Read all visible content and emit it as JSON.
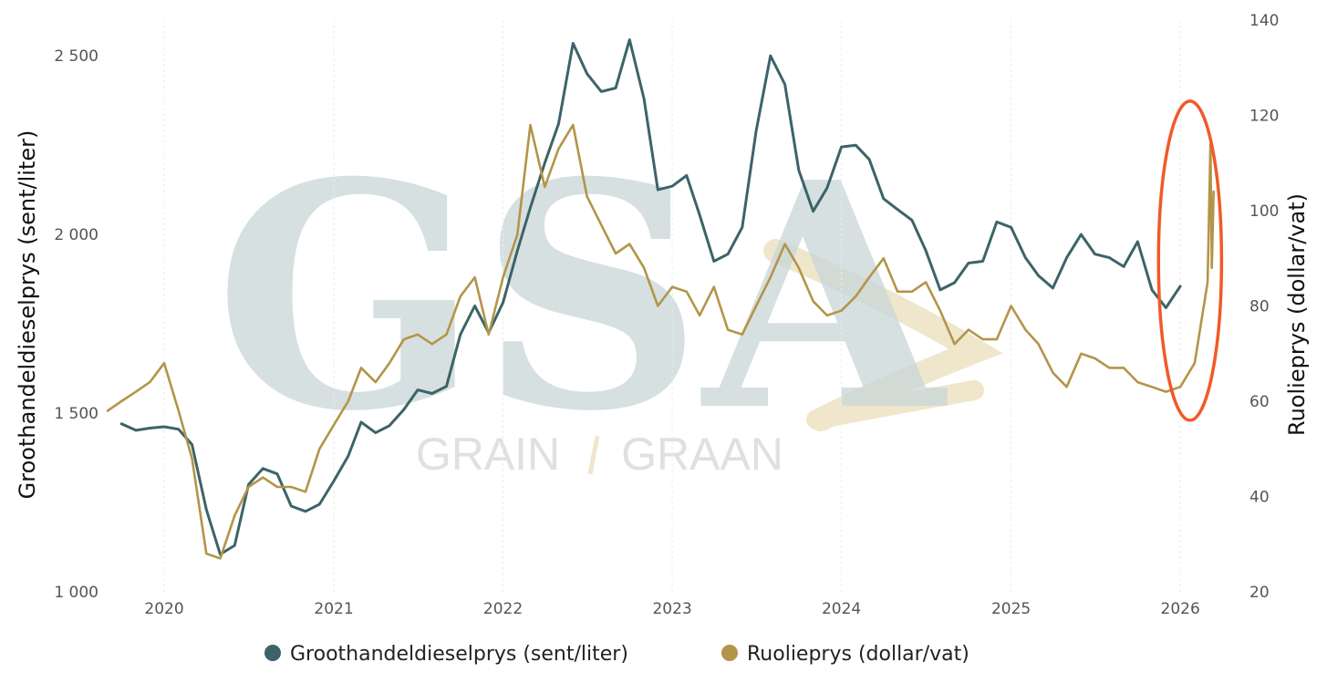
{
  "watermark": {
    "logo_text": "GSA",
    "text_left": "GRAIN",
    "text_right": "GRAAN",
    "colors": {
      "logo": "#c9d6d8",
      "accent": "#efe6cc"
    }
  },
  "chart_data": {
    "type": "line",
    "title": "",
    "x_ticks": [
      "2020",
      "2021",
      "2022",
      "2023",
      "2024",
      "2025",
      "2026"
    ],
    "xlim": [
      "2019-09-01",
      "2026-04-15"
    ],
    "grid": {
      "x": true,
      "y": false
    },
    "legend_position": "bottom",
    "y_left": {
      "label": "Groothandeldieselprys (sent/liter)",
      "range": [
        1000,
        2600
      ],
      "ticks": [
        1000,
        1500,
        2000,
        2500
      ],
      "tick_labels": [
        "1 000",
        "1 500",
        "2 000",
        "2 500"
      ]
    },
    "y_right": {
      "label": "Ruolieprys (dollar/vat)",
      "range": [
        20,
        140
      ],
      "ticks": [
        20,
        40,
        60,
        80,
        100,
        120,
        140
      ],
      "tick_labels": [
        "20",
        "40",
        "60",
        "80",
        "100",
        "120",
        "140"
      ]
    },
    "series": [
      {
        "name": "Groothandeldieselprys (sent/liter)",
        "axis": "left",
        "color": "#3c6468",
        "points": [
          [
            "2019-10-01",
            1470
          ],
          [
            "2019-11-01",
            1452
          ],
          [
            "2019-12-01",
            1458
          ],
          [
            "2020-01-01",
            1462
          ],
          [
            "2020-02-01",
            1455
          ],
          [
            "2020-03-01",
            1412
          ],
          [
            "2020-04-01",
            1230
          ],
          [
            "2020-05-01",
            1105
          ],
          [
            "2020-06-01",
            1130
          ],
          [
            "2020-07-01",
            1300
          ],
          [
            "2020-08-01",
            1345
          ],
          [
            "2020-09-01",
            1330
          ],
          [
            "2020-10-01",
            1240
          ],
          [
            "2020-11-01",
            1225
          ],
          [
            "2020-12-01",
            1245
          ],
          [
            "2021-01-01",
            1310
          ],
          [
            "2021-02-01",
            1380
          ],
          [
            "2021-03-01",
            1475
          ],
          [
            "2021-04-01",
            1445
          ],
          [
            "2021-05-01",
            1465
          ],
          [
            "2021-06-01",
            1510
          ],
          [
            "2021-07-01",
            1565
          ],
          [
            "2021-08-01",
            1555
          ],
          [
            "2021-09-01",
            1575
          ],
          [
            "2021-10-01",
            1720
          ],
          [
            "2021-11-01",
            1800
          ],
          [
            "2021-12-01",
            1725
          ],
          [
            "2022-01-01",
            1810
          ],
          [
            "2022-02-01",
            1955
          ],
          [
            "2022-03-01",
            2075
          ],
          [
            "2022-04-01",
            2200
          ],
          [
            "2022-05-01",
            2310
          ],
          [
            "2022-06-01",
            2535
          ],
          [
            "2022-07-01",
            2450
          ],
          [
            "2022-08-01",
            2400
          ],
          [
            "2022-09-01",
            2410
          ],
          [
            "2022-10-01",
            2545
          ],
          [
            "2022-11-01",
            2380
          ],
          [
            "2022-12-01",
            2125
          ],
          [
            "2023-01-01",
            2135
          ],
          [
            "2023-02-01",
            2165
          ],
          [
            "2023-03-01",
            2055
          ],
          [
            "2023-04-01",
            1925
          ],
          [
            "2023-05-01",
            1945
          ],
          [
            "2023-06-01",
            2020
          ],
          [
            "2023-07-01",
            2290
          ],
          [
            "2023-08-01",
            2500
          ],
          [
            "2023-09-01",
            2420
          ],
          [
            "2023-10-01",
            2180
          ],
          [
            "2023-11-01",
            2065
          ],
          [
            "2023-12-01",
            2130
          ],
          [
            "2024-01-01",
            2245
          ],
          [
            "2024-02-01",
            2250
          ],
          [
            "2024-03-01",
            2210
          ],
          [
            "2024-04-01",
            2100
          ],
          [
            "2024-05-01",
            2070
          ],
          [
            "2024-06-01",
            2040
          ],
          [
            "2024-07-01",
            1955
          ],
          [
            "2024-08-01",
            1845
          ],
          [
            "2024-09-01",
            1865
          ],
          [
            "2024-10-01",
            1920
          ],
          [
            "2024-11-01",
            1925
          ],
          [
            "2024-12-01",
            2035
          ],
          [
            "2025-01-01",
            2020
          ],
          [
            "2025-02-01",
            1935
          ],
          [
            "2025-03-01",
            1885
          ],
          [
            "2025-04-01",
            1850
          ],
          [
            "2025-05-01",
            1935
          ],
          [
            "2025-06-01",
            2000
          ],
          [
            "2025-07-01",
            1945
          ],
          [
            "2025-08-01",
            1935
          ],
          [
            "2025-09-01",
            1910
          ],
          [
            "2025-10-01",
            1980
          ],
          [
            "2025-11-01",
            1845
          ],
          [
            "2025-12-01",
            1795
          ],
          [
            "2026-01-01",
            1855
          ]
        ]
      },
      {
        "name": "Ruolieprys (dollar/vat)",
        "axis": "right",
        "color": "#b39549",
        "points": [
          [
            "2019-09-01",
            58
          ],
          [
            "2019-10-01",
            60
          ],
          [
            "2019-11-01",
            62
          ],
          [
            "2019-12-01",
            64
          ],
          [
            "2020-01-01",
            68
          ],
          [
            "2020-02-01",
            58
          ],
          [
            "2020-03-01",
            48
          ],
          [
            "2020-04-01",
            28
          ],
          [
            "2020-05-01",
            27
          ],
          [
            "2020-06-01",
            36
          ],
          [
            "2020-07-01",
            42
          ],
          [
            "2020-08-01",
            44
          ],
          [
            "2020-09-01",
            42
          ],
          [
            "2020-10-01",
            42
          ],
          [
            "2020-11-01",
            41
          ],
          [
            "2020-12-01",
            50
          ],
          [
            "2021-01-01",
            55
          ],
          [
            "2021-02-01",
            60
          ],
          [
            "2021-03-01",
            67
          ],
          [
            "2021-04-01",
            64
          ],
          [
            "2021-05-01",
            68
          ],
          [
            "2021-06-01",
            73
          ],
          [
            "2021-07-01",
            74
          ],
          [
            "2021-08-01",
            72
          ],
          [
            "2021-09-01",
            74
          ],
          [
            "2021-10-01",
            82
          ],
          [
            "2021-11-01",
            86
          ],
          [
            "2021-12-01",
            74
          ],
          [
            "2022-01-01",
            86
          ],
          [
            "2022-02-01",
            95
          ],
          [
            "2022-03-01",
            118
          ],
          [
            "2022-04-01",
            105
          ],
          [
            "2022-05-01",
            113
          ],
          [
            "2022-06-01",
            118
          ],
          [
            "2022-07-01",
            103
          ],
          [
            "2022-08-01",
            97
          ],
          [
            "2022-09-01",
            91
          ],
          [
            "2022-10-01",
            93
          ],
          [
            "2022-11-01",
            88
          ],
          [
            "2022-12-01",
            80
          ],
          [
            "2023-01-01",
            84
          ],
          [
            "2023-02-01",
            83
          ],
          [
            "2023-03-01",
            78
          ],
          [
            "2023-04-01",
            84
          ],
          [
            "2023-05-01",
            75
          ],
          [
            "2023-06-01",
            74
          ],
          [
            "2023-07-01",
            80
          ],
          [
            "2023-08-01",
            86
          ],
          [
            "2023-09-01",
            93
          ],
          [
            "2023-10-01",
            88
          ],
          [
            "2023-11-01",
            81
          ],
          [
            "2023-12-01",
            78
          ],
          [
            "2024-01-01",
            79
          ],
          [
            "2024-02-01",
            82
          ],
          [
            "2024-03-01",
            86
          ],
          [
            "2024-04-01",
            90
          ],
          [
            "2024-05-01",
            83
          ],
          [
            "2024-06-01",
            83
          ],
          [
            "2024-07-01",
            85
          ],
          [
            "2024-08-01",
            79
          ],
          [
            "2024-09-01",
            72
          ],
          [
            "2024-10-01",
            75
          ],
          [
            "2024-11-01",
            73
          ],
          [
            "2024-12-01",
            73
          ],
          [
            "2025-01-01",
            80
          ],
          [
            "2025-02-01",
            75
          ],
          [
            "2025-03-01",
            72
          ],
          [
            "2025-04-01",
            66
          ],
          [
            "2025-05-01",
            63
          ],
          [
            "2025-06-01",
            70
          ],
          [
            "2025-07-01",
            69
          ],
          [
            "2025-08-01",
            67
          ],
          [
            "2025-09-01",
            67
          ],
          [
            "2025-10-01",
            64
          ],
          [
            "2025-11-01",
            63
          ],
          [
            "2025-12-01",
            62
          ],
          [
            "2026-01-01",
            63
          ],
          [
            "2026-02-01",
            68
          ],
          [
            "2026-03-01",
            85
          ],
          [
            "2026-03-07",
            114
          ],
          [
            "2026-03-10",
            88
          ],
          [
            "2026-03-14",
            104
          ]
        ]
      }
    ],
    "annotation": {
      "shape": "ellipse",
      "color": "#f05a28",
      "x_from": "2025-11-15",
      "x_to": "2026-03-31",
      "y_right_from": 56,
      "y_right_to": 123
    }
  }
}
